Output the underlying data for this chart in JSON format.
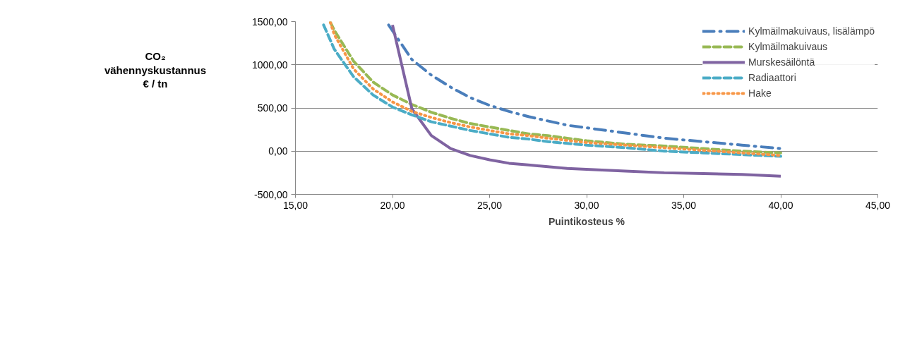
{
  "chart_data": {
    "type": "line",
    "xlabel": "Puintikosteus %",
    "ylabel": "CO₂ vähennyskustannus € / tn",
    "xlim": [
      15,
      45
    ],
    "ylim": [
      -500,
      1500
    ],
    "xticks": [
      {
        "value": 15,
        "label": "15,00"
      },
      {
        "value": 20,
        "label": "20,00"
      },
      {
        "value": 25,
        "label": "25,00"
      },
      {
        "value": 30,
        "label": "30,00"
      },
      {
        "value": 35,
        "label": "35,00"
      },
      {
        "value": 40,
        "label": "40,00"
      },
      {
        "value": 45,
        "label": "45,00"
      }
    ],
    "yticks": [
      {
        "value": -500,
        "label": "-500,00"
      },
      {
        "value": 0,
        "label": "0,00"
      },
      {
        "value": 500,
        "label": "500,00"
      },
      {
        "value": 1000,
        "label": "1000,00"
      },
      {
        "value": 1500,
        "label": "1500,00"
      }
    ],
    "grid": "y",
    "legend": "top right",
    "marker": "none",
    "series": [
      {
        "name": "Kylmäilmakuivaus, lisälämpö",
        "color": "#4a7ebb",
        "line_style": "dashdot",
        "x": [
          19.8,
          21,
          22,
          23,
          24,
          25,
          26,
          27,
          28,
          29,
          30,
          32,
          34,
          36,
          38,
          40
        ],
        "values": [
          1460,
          1060,
          880,
          740,
          620,
          530,
          460,
          400,
          350,
          300,
          270,
          210,
          150,
          110,
          70,
          30
        ]
      },
      {
        "name": "Kylmäilmakuivaus",
        "color": "#98b954",
        "line_style": "dashed",
        "x": [
          16.8,
          17,
          18,
          19,
          20,
          21,
          22,
          23,
          24,
          25,
          26,
          27,
          28,
          29,
          30,
          32,
          34,
          36,
          38,
          40
        ],
        "values": [
          1490,
          1400,
          1040,
          800,
          650,
          540,
          450,
          380,
          320,
          280,
          240,
          200,
          180,
          150,
          120,
          80,
          60,
          30,
          0,
          -20
        ]
      },
      {
        "name": "Murskesäilöntä",
        "color": "#7f63a1",
        "line_style": "solid",
        "x": [
          20,
          21,
          22,
          23,
          24,
          25,
          26,
          27,
          28,
          29,
          30,
          32,
          34,
          36,
          38,
          40
        ],
        "values": [
          1460,
          490,
          180,
          30,
          -50,
          -100,
          -140,
          -160,
          -180,
          -200,
          -210,
          -230,
          -250,
          -260,
          -270,
          -290
        ]
      },
      {
        "name": "Radiaattori",
        "color": "#4bacc6",
        "line_style": "dashed",
        "x": [
          16.45,
          17,
          18,
          19,
          20,
          21,
          22,
          23,
          24,
          25,
          26,
          27,
          28,
          30,
          32,
          34,
          36,
          38,
          40
        ],
        "values": [
          1460,
          1180,
          860,
          650,
          510,
          420,
          340,
          290,
          240,
          200,
          160,
          140,
          110,
          70,
          40,
          0,
          -20,
          -40,
          -60
        ]
      },
      {
        "name": "Hake",
        "color": "#f79646",
        "line_style": "dotted",
        "x": [
          16.8,
          17,
          18,
          19,
          20,
          21,
          22,
          23,
          24,
          25,
          26,
          27,
          28,
          30,
          32,
          34,
          36,
          38,
          40
        ],
        "values": [
          1490,
          1350,
          950,
          720,
          570,
          460,
          390,
          330,
          280,
          240,
          200,
          180,
          150,
          100,
          70,
          40,
          10,
          -20,
          -50
        ]
      }
    ]
  }
}
